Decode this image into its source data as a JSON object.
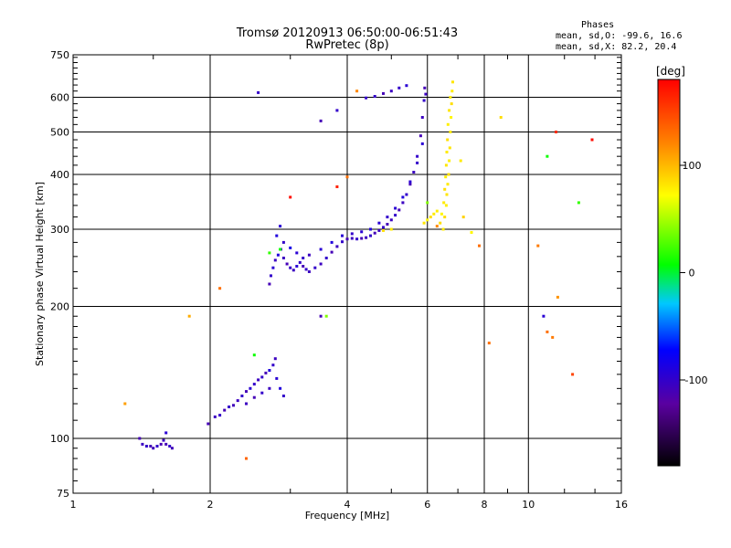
{
  "chart_data": {
    "type": "scatter",
    "title": "Tromsø 20120913 06:50:00-06:51:43",
    "subtitle": "RwPretec (8p)",
    "xlabel": "Frequency [MHz]",
    "ylabel": "Stationary phase Virtual Height [km]",
    "x_scale": "log",
    "y_scale": "log",
    "xlim": [
      1,
      16
    ],
    "ylim": [
      75,
      750
    ],
    "x_ticks": [
      1,
      2,
      4,
      6,
      8,
      10,
      16
    ],
    "x_tick_labels": [
      "1",
      "2",
      "4",
      "6",
      "8",
      "10",
      "16"
    ],
    "y_ticks": [
      75,
      100,
      200,
      300,
      400,
      500,
      600,
      750
    ],
    "y_tick_labels": [
      "75",
      "100",
      "200",
      "300",
      "400",
      "500",
      "600",
      "750"
    ],
    "grid": true,
    "colorbar": {
      "unit": "[deg]",
      "range": [
        -180,
        180
      ],
      "ticks": [
        100,
        0,
        -100
      ],
      "tick_labels": [
        "100",
        "0",
        "-100"
      ]
    },
    "stats_header": "Phases",
    "stats_lines": [
      "mean, sd,O: -99.6, 16.6",
      "mean, sd,X:  82.2, 20.4"
    ],
    "series": [
      {
        "mode": "O",
        "points": [
          [
            1.4,
            100,
            -110
          ],
          [
            1.42,
            97,
            -105
          ],
          [
            1.45,
            96,
            -100
          ],
          [
            1.48,
            96,
            -110
          ],
          [
            1.5,
            95,
            -108
          ],
          [
            1.53,
            96,
            -100
          ],
          [
            1.56,
            97,
            -112
          ],
          [
            1.58,
            99,
            -105
          ],
          [
            1.6,
            97,
            -110
          ],
          [
            1.63,
            96,
            -100
          ],
          [
            1.65,
            95,
            -108
          ],
          [
            1.6,
            103,
            -95
          ],
          [
            1.98,
            108,
            -110
          ],
          [
            2.05,
            112,
            -105
          ],
          [
            2.1,
            113,
            -100
          ],
          [
            2.15,
            116,
            -110
          ],
          [
            2.2,
            118,
            -100
          ],
          [
            2.25,
            119,
            -108
          ],
          [
            2.3,
            122,
            -105
          ],
          [
            2.35,
            125,
            -100
          ],
          [
            2.4,
            128,
            -110
          ],
          [
            2.45,
            130,
            -95
          ],
          [
            2.5,
            133,
            -100
          ],
          [
            2.55,
            136,
            -105
          ],
          [
            2.6,
            138,
            -100
          ],
          [
            2.65,
            141,
            -110
          ],
          [
            2.7,
            143,
            -90
          ],
          [
            2.75,
            147,
            -100
          ],
          [
            2.8,
            137,
            -95
          ],
          [
            2.7,
            130,
            -105
          ],
          [
            2.6,
            127,
            -100
          ],
          [
            2.5,
            124,
            -110
          ],
          [
            2.4,
            120,
            -105
          ],
          [
            2.85,
            130,
            -90
          ],
          [
            2.9,
            125,
            -100
          ],
          [
            2.78,
            152,
            -105
          ],
          [
            2.7,
            225,
            -110
          ],
          [
            2.72,
            235,
            -100
          ],
          [
            2.75,
            245,
            -95
          ],
          [
            2.78,
            255,
            -105
          ],
          [
            2.82,
            262,
            -90
          ],
          [
            2.86,
            270,
            -100
          ],
          [
            2.9,
            258,
            -105
          ],
          [
            2.95,
            250,
            -110
          ],
          [
            3.0,
            245,
            -100
          ],
          [
            3.05,
            242,
            -105
          ],
          [
            3.1,
            247,
            -95
          ],
          [
            3.15,
            252,
            -100
          ],
          [
            3.2,
            247,
            -110
          ],
          [
            3.25,
            243,
            -100
          ],
          [
            3.3,
            240,
            -105
          ],
          [
            3.4,
            245,
            -100
          ],
          [
            3.5,
            250,
            -105
          ],
          [
            3.6,
            258,
            -100
          ],
          [
            3.7,
            266,
            -110
          ],
          [
            3.8,
            274,
            -105
          ],
          [
            3.9,
            281,
            -100
          ],
          [
            4.0,
            285,
            -110
          ],
          [
            4.1,
            286,
            -105
          ],
          [
            4.2,
            285,
            -100
          ],
          [
            4.3,
            286,
            -110
          ],
          [
            4.4,
            287,
            -105
          ],
          [
            4.5,
            290,
            -100
          ],
          [
            4.6,
            294,
            -110
          ],
          [
            4.7,
            298,
            -105
          ],
          [
            4.8,
            303,
            -100
          ],
          [
            4.9,
            308,
            -110
          ],
          [
            5.0,
            315,
            -105
          ],
          [
            5.1,
            323,
            -100
          ],
          [
            5.2,
            332,
            -110
          ],
          [
            5.3,
            345,
            -105
          ],
          [
            5.4,
            360,
            -100
          ],
          [
            5.5,
            380,
            -110
          ],
          [
            5.6,
            405,
            -105
          ],
          [
            5.7,
            440,
            -100
          ],
          [
            5.8,
            490,
            -110
          ],
          [
            5.85,
            540,
            -105
          ],
          [
            5.9,
            590,
            -100
          ],
          [
            5.92,
            630,
            -110
          ],
          [
            5.95,
            610,
            -105
          ],
          [
            2.8,
            290,
            -90
          ],
          [
            2.85,
            305,
            -95
          ],
          [
            2.9,
            280,
            -100
          ],
          [
            3.0,
            272,
            -85
          ],
          [
            3.1,
            265,
            -95
          ],
          [
            3.2,
            258,
            -100
          ],
          [
            3.3,
            262,
            -105
          ],
          [
            3.5,
            270,
            -95
          ],
          [
            3.7,
            280,
            -90
          ],
          [
            3.9,
            290,
            -95
          ],
          [
            4.1,
            293,
            -100
          ],
          [
            4.3,
            296,
            -95
          ],
          [
            4.5,
            300,
            -90
          ],
          [
            4.7,
            310,
            -95
          ],
          [
            4.9,
            320,
            -100
          ],
          [
            5.1,
            335,
            -95
          ],
          [
            5.3,
            355,
            -90
          ],
          [
            5.5,
            385,
            -95
          ],
          [
            5.7,
            425,
            -100
          ],
          [
            5.85,
            470,
            -95
          ],
          [
            4.6,
            603,
            -100
          ],
          [
            4.8,
            612,
            -110
          ],
          [
            5.0,
            620,
            -105
          ],
          [
            5.2,
            630,
            -100
          ],
          [
            5.4,
            638,
            -95
          ],
          [
            4.4,
            598,
            -100
          ],
          [
            3.5,
            530,
            -110
          ],
          [
            3.8,
            560,
            -100
          ],
          [
            2.55,
            615,
            -100
          ],
          [
            3.5,
            190,
            -110
          ],
          [
            10.8,
            190,
            -95
          ]
        ]
      },
      {
        "mode": "X",
        "points": [
          [
            6.5,
            300,
            80
          ],
          [
            6.55,
            320,
            85
          ],
          [
            6.6,
            340,
            78
          ],
          [
            6.62,
            360,
            82
          ],
          [
            6.65,
            380,
            80
          ],
          [
            6.68,
            400,
            85
          ],
          [
            6.7,
            430,
            78
          ],
          [
            6.72,
            460,
            82
          ],
          [
            6.74,
            500,
            80
          ],
          [
            6.76,
            540,
            75
          ],
          [
            6.78,
            580,
            85
          ],
          [
            6.8,
            620,
            80
          ],
          [
            6.82,
            650,
            82
          ],
          [
            6.4,
            310,
            85
          ],
          [
            6.45,
            325,
            75
          ],
          [
            6.52,
            345,
            80
          ],
          [
            6.55,
            370,
            85
          ],
          [
            6.58,
            395,
            78
          ],
          [
            6.6,
            420,
            82
          ],
          [
            6.62,
            450,
            80
          ],
          [
            6.64,
            480,
            85
          ],
          [
            6.66,
            520,
            78
          ],
          [
            6.7,
            560,
            82
          ],
          [
            6.74,
            600,
            80
          ],
          [
            6.0,
            315,
            75
          ],
          [
            6.1,
            320,
            85
          ],
          [
            6.2,
            325,
            80
          ],
          [
            6.3,
            330,
            78
          ],
          [
            5.9,
            310,
            82
          ],
          [
            5.0,
            300,
            80
          ],
          [
            4.8,
            298,
            85
          ],
          [
            7.2,
            320,
            90
          ],
          [
            7.5,
            295,
            75
          ],
          [
            8.7,
            540,
            85
          ],
          [
            7.1,
            430,
            80
          ]
        ]
      },
      {
        "mode": "noise",
        "points": [
          [
            1.3,
            120,
            110
          ],
          [
            1.8,
            190,
            105
          ],
          [
            2.1,
            220,
            130
          ],
          [
            2.4,
            90,
            135
          ],
          [
            2.5,
            155,
            10
          ],
          [
            3.0,
            355,
            175
          ],
          [
            3.8,
            375,
            165
          ],
          [
            4.0,
            395,
            130
          ],
          [
            3.6,
            190,
            40
          ],
          [
            8.2,
            165,
            130
          ],
          [
            7.8,
            275,
            130
          ],
          [
            10.5,
            275,
            125
          ],
          [
            11.0,
            175,
            130
          ],
          [
            11.3,
            170,
            125
          ],
          [
            11.5,
            500,
            160
          ],
          [
            11.6,
            210,
            115
          ],
          [
            12.5,
            140,
            150
          ],
          [
            11.0,
            440,
            10
          ],
          [
            12.9,
            345,
            20
          ],
          [
            13.8,
            480,
            175
          ],
          [
            4.2,
            620,
            120
          ],
          [
            6.3,
            305,
            120
          ],
          [
            6.0,
            345,
            40
          ],
          [
            2.7,
            265,
            20
          ],
          [
            2.85,
            270,
            10
          ]
        ]
      }
    ]
  }
}
